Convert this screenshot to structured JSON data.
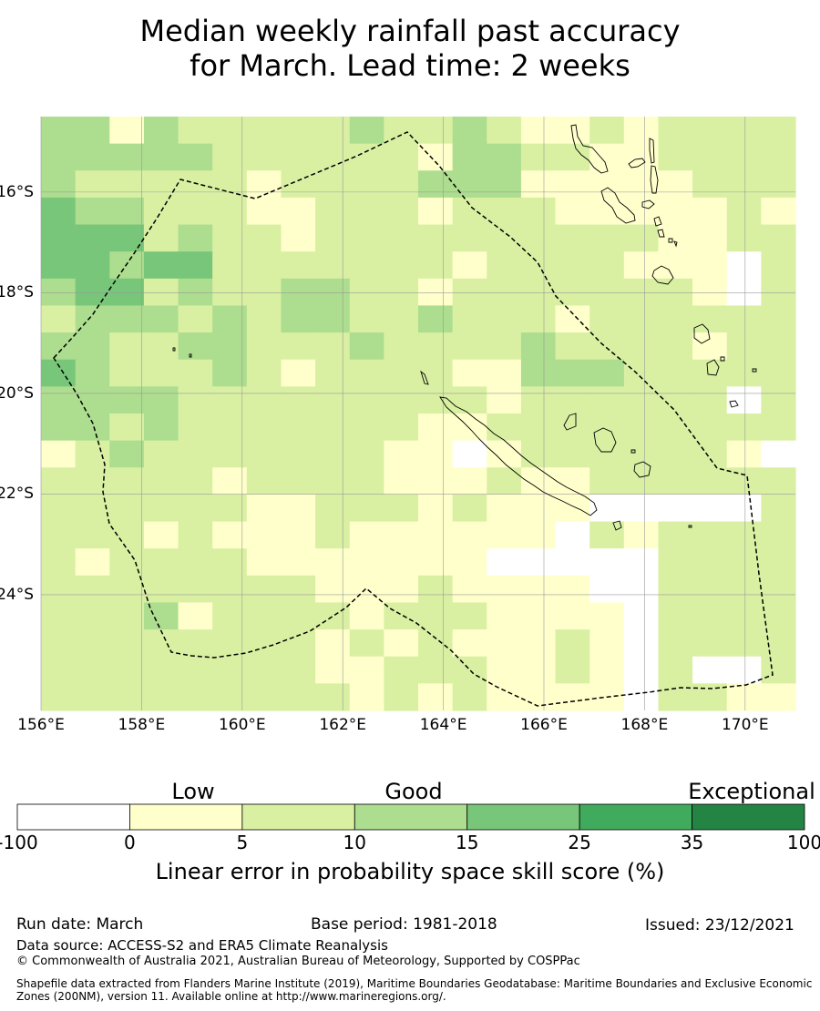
{
  "title_line1": "Median weekly rainfall past accuracy",
  "title_line2": "for March. Lead time: 2 weeks",
  "map": {
    "lon_labels": [
      "156°E",
      "158°E",
      "160°E",
      "162°E",
      "164°E",
      "166°E",
      "168°E",
      "170°E"
    ],
    "lat_labels": [
      "16°S",
      "18°S",
      "20°S",
      "22°S",
      "24°S"
    ],
    "lon_min": 156,
    "lon_max": 171,
    "lat_top": -14.5,
    "lat_bottom": -26.3,
    "cell_colors": [
      "#ffffff",
      "#ffffcc",
      "#d9f0a3",
      "#addd8e",
      "#78c679",
      "#41ab5d",
      "#238443"
    ],
    "grid_rows": [
      "3313222223223211212222",
      "3333322222213322112222",
      "3222221222233311111222",
      "4332221122212221111121",
      "4442322122222222221122",
      "4434422222221222211102",
      "3442322332212222222102",
      "2333232332232221222222",
      "3322332223222232222122",
      "4322232122221133322222",
      "3333222222222122222202",
      "3323222222211222222222",
      "1232222222110122222210",
      "2222212222111211222222",
      "2222221122212111000002",
      "2221211121111110212222",
      "2122221111111000002222",
      "2222222211121111002222",
      "2223122221222111102222",
      "2222222212121112102222",
      "2222222211222112102002",
      "2222222221212111102211"
    ],
    "colors": {
      "eez_line": "#000000",
      "coast": "#000000",
      "gridline": "#9a9a9a"
    }
  },
  "colorbar": {
    "categories": [
      "Low",
      "Good",
      "Exceptional"
    ],
    "ticks": [
      "-100",
      "0",
      "5",
      "10",
      "15",
      "25",
      "35",
      "100"
    ],
    "colors": [
      "#ffffff",
      "#ffffcc",
      "#d9f0a3",
      "#addd8e",
      "#78c679",
      "#41ab5d",
      "#238443"
    ],
    "label": "Linear error in probability space skill score (%)"
  },
  "footer": {
    "run_date": "Run date: March",
    "base_period": "Base period: 1981-2018",
    "issued": "Issued: 23/12/2021",
    "data_source": "Data source: ACCESS-S2 and ERA5 Climate Reanalysis",
    "copyright": "© Commonwealth of Australia 2021, Australian Bureau of Meteorology, Supported by COSPPac",
    "shapefile": "Shapefile data extracted from Flanders Marine Institute (2019), Maritime Boundaries Geodatabase: Maritime Boundaries and Exclusive Economic Zones (200NM), version 11. Available online at http://www.marineregions.org/."
  }
}
